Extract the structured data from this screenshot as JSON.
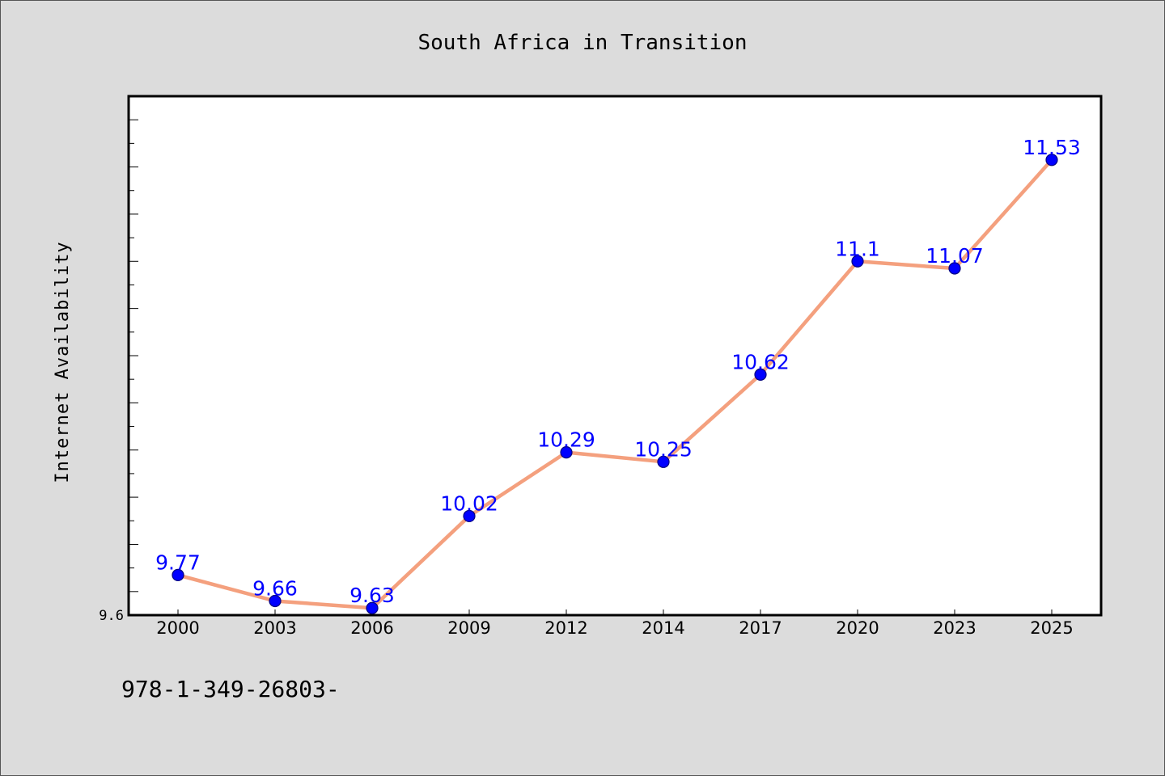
{
  "chart_data": {
    "type": "line",
    "title": "South Africa in Transition",
    "xlabel": "",
    "ylabel": "Internet Availability",
    "categories": [
      "2000",
      "2003",
      "2006",
      "2009",
      "2012",
      "2014",
      "2017",
      "2020",
      "2023",
      "2025"
    ],
    "series": [
      {
        "values": [
          9.77,
          9.66,
          9.63,
          10.02,
          10.29,
          10.25,
          10.62,
          11.1,
          11.07,
          11.53
        ]
      }
    ],
    "data_labels": [
      "9.77",
      "9.66",
      "9.63",
      "10.02",
      "10.29",
      "10.25",
      "10.62",
      "11.1",
      "11.07",
      "11.53"
    ],
    "y_tick_labels": [
      "9.6"
    ],
    "ylim": [
      9.6,
      11.8
    ],
    "grid": false,
    "legend": "none",
    "colors": {
      "line": "#f4a07e",
      "marker_fill": "#0000ff",
      "marker_edge": "#000080",
      "data_label": "#0000ff",
      "background": "#dcdcdc",
      "plot_background": "#ffffff"
    }
  },
  "footer": {
    "text": "978-1-349-26803-"
  }
}
